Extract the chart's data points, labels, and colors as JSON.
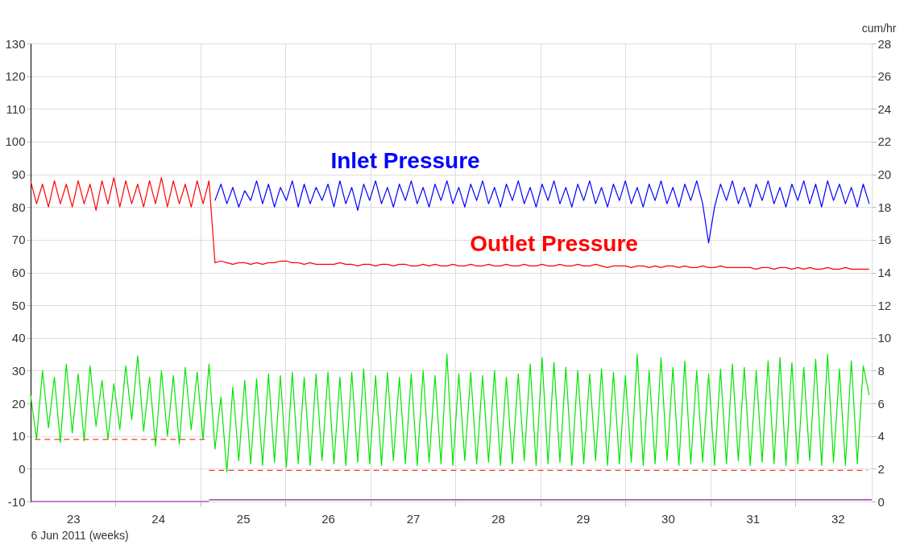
{
  "chart_data": {
    "type": "line",
    "xlabel": "6 Jun 2011 (weeks)",
    "y2label": "cum/hr",
    "grid": true,
    "marker": "none",
    "xlim": [
      22.5,
      32.4
    ],
    "xticks": [
      23,
      24,
      25,
      26,
      27,
      28,
      29,
      30,
      31,
      32,
      {
        "value": 23.5,
        "label": null
      },
      {
        "value": 24.5,
        "label": null
      },
      {
        "value": 25.5,
        "label": null
      },
      {
        "value": 26.5,
        "label": null
      },
      {
        "value": 27.5,
        "label": null
      },
      {
        "value": 28.5,
        "label": null
      },
      {
        "value": 29.5,
        "label": null
      },
      {
        "value": 30.5,
        "label": null
      },
      {
        "value": 31.5,
        "label": null
      }
    ],
    "ylim": [
      -10,
      130
    ],
    "yticks": [
      -10,
      0,
      10,
      20,
      30,
      40,
      50,
      60,
      70,
      80,
      90,
      100,
      110,
      120,
      130
    ],
    "y2lim": [
      0,
      28
    ],
    "y2ticks": [
      0,
      2,
      4,
      6,
      8,
      10,
      12,
      14,
      16,
      18,
      20,
      22,
      24,
      26,
      28
    ],
    "x": [
      22.5,
      22.57,
      22.64,
      22.71,
      22.78,
      22.85,
      22.92,
      22.99,
      23.06,
      23.13,
      23.2,
      23.27,
      23.34,
      23.41,
      23.48,
      23.55,
      23.62,
      23.69,
      23.76,
      23.83,
      23.9,
      23.97,
      24.04,
      24.11,
      24.18,
      24.25,
      24.32,
      24.39,
      24.46,
      24.53,
      24.6,
      24.67,
      24.74,
      24.81,
      24.88,
      24.95,
      25.02,
      25.09,
      25.16,
      25.23,
      25.3,
      25.37,
      25.44,
      25.51,
      25.58,
      25.65,
      25.72,
      25.79,
      25.86,
      25.93,
      26,
      26.07,
      26.14,
      26.21,
      26.28,
      26.35,
      26.42,
      26.49,
      26.56,
      26.63,
      26.7,
      26.77,
      26.84,
      26.91,
      26.98,
      27.05,
      27.12,
      27.19,
      27.26,
      27.33,
      27.4,
      27.47,
      27.54,
      27.61,
      27.68,
      27.75,
      27.82,
      27.89,
      27.96,
      28.03,
      28.1,
      28.17,
      28.24,
      28.31,
      28.38,
      28.45,
      28.52,
      28.59,
      28.66,
      28.73,
      28.8,
      28.87,
      28.94,
      29.01,
      29.08,
      29.15,
      29.22,
      29.29,
      29.36,
      29.43,
      29.5,
      29.57,
      29.64,
      29.71,
      29.78,
      29.85,
      29.92,
      29.99,
      30.06,
      30.13,
      30.2,
      30.27,
      30.34,
      30.41,
      30.48,
      30.55,
      30.62,
      30.69,
      30.76,
      30.83,
      30.9,
      30.97,
      31.04,
      31.11,
      31.18,
      31.25,
      31.32,
      31.39,
      31.46,
      31.53,
      31.6,
      31.67,
      31.74,
      31.81,
      31.88,
      31.95,
      32.02,
      32.09,
      32.16,
      32.23,
      32.3,
      32.37
    ],
    "series": [
      {
        "name": "Inlet Pressure",
        "color": "#0000ff",
        "values": [
          null,
          null,
          null,
          null,
          null,
          null,
          null,
          null,
          null,
          null,
          null,
          null,
          null,
          null,
          null,
          null,
          null,
          null,
          null,
          null,
          null,
          null,
          null,
          null,
          null,
          null,
          null,
          null,
          null,
          null,
          null,
          82,
          87,
          81,
          86,
          80,
          85,
          82,
          88,
          81,
          87,
          80,
          86,
          82,
          88,
          80,
          87,
          81,
          86,
          82,
          87,
          80,
          88,
          81,
          86,
          79,
          87,
          82,
          88,
          81,
          86,
          80,
          87,
          82,
          88,
          81,
          86,
          80,
          87,
          82,
          88,
          81,
          86,
          80,
          87,
          82,
          88,
          81,
          86,
          80,
          87,
          82,
          88,
          81,
          86,
          80,
          87,
          82,
          88,
          81,
          86,
          80,
          87,
          82,
          88,
          81,
          86,
          80,
          87,
          82,
          88,
          81,
          86,
          80,
          87,
          82,
          88,
          81,
          86,
          80,
          87,
          82,
          88,
          81,
          69,
          80,
          87,
          82,
          88,
          81,
          86,
          80,
          87,
          82,
          88,
          81,
          86,
          80,
          87,
          82,
          88,
          81,
          87,
          80,
          88,
          82,
          87,
          81,
          86,
          80,
          87,
          81
        ]
      },
      {
        "name": "Outlet Pressure",
        "color": "#ff0000",
        "values": [
          88,
          81,
          87,
          80,
          88,
          81,
          87,
          80,
          88,
          81,
          87,
          79,
          88,
          81,
          89,
          80,
          88,
          81,
          87,
          80,
          88,
          81,
          89,
          80,
          88,
          81,
          87,
          80,
          88,
          81,
          88,
          63,
          63.5,
          63,
          62.5,
          63,
          63,
          62.5,
          63,
          62.5,
          63,
          63,
          63.5,
          63.5,
          63,
          63,
          62.5,
          63,
          62.5,
          62.5,
          62.5,
          62.5,
          63,
          62.5,
          62.5,
          62,
          62.5,
          62.5,
          62,
          62.5,
          62.5,
          62,
          62.5,
          62.5,
          62,
          62,
          62.5,
          62,
          62.5,
          62,
          62,
          62.5,
          62,
          62,
          62.5,
          62,
          62,
          62.5,
          62,
          62,
          62.5,
          62,
          62,
          62.5,
          62,
          62,
          62.5,
          62,
          62,
          62.5,
          62,
          62,
          62.5,
          62,
          62,
          62.5,
          62,
          61.5,
          62,
          62,
          62,
          61.5,
          62,
          62,
          61.5,
          62,
          61.5,
          62,
          62,
          61.5,
          62,
          61.5,
          61.5,
          62,
          61.5,
          61.5,
          62,
          61.5,
          61.5,
          61.5,
          61.5,
          61.5,
          61,
          61.5,
          61.5,
          61,
          61.5,
          61.5,
          61,
          61.5,
          61,
          61.5,
          61,
          61,
          61.5,
          61,
          61,
          61.5,
          61,
          61,
          61,
          61
        ]
      },
      {
        "color": "#00e600",
        "axis": "y2",
        "values": [
          6.5,
          3.8,
          8.0,
          4.5,
          7.6,
          3.6,
          8.4,
          4.2,
          7.8,
          3.7,
          8.3,
          4.6,
          7.4,
          3.8,
          7.2,
          4.4,
          8.3,
          5.0,
          8.9,
          4.3,
          7.6,
          3.4,
          8.0,
          4.0,
          7.7,
          3.5,
          8.2,
          4.4,
          7.9,
          3.8,
          8.4,
          3.2,
          6.4,
          1.8,
          7.0,
          2.5,
          7.4,
          2.3,
          7.5,
          2.2,
          7.8,
          2.4,
          7.7,
          2.1,
          7.9,
          2.3,
          7.6,
          2.2,
          7.8,
          2.5,
          7.9,
          2.3,
          7.6,
          2.2,
          7.9,
          2.4,
          8.1,
          2.3,
          7.7,
          2.2,
          7.9,
          2.5,
          7.6,
          2.3,
          7.8,
          2.2,
          8.0,
          2.4,
          7.7,
          2.3,
          9.0,
          2.2,
          7.8,
          2.5,
          7.9,
          2.3,
          7.7,
          2.4,
          8.0,
          2.2,
          7.6,
          2.3,
          7.8,
          2.5,
          8.4,
          2.2,
          8.8,
          2.3,
          8.5,
          2.4,
          8.2,
          2.2,
          8.0,
          2.3,
          7.8,
          2.5,
          8.1,
          2.2,
          7.9,
          2.3,
          7.7,
          2.4,
          9.0,
          2.2,
          8.0,
          2.3,
          8.8,
          2.5,
          8.2,
          2.2,
          8.6,
          2.3,
          8.0,
          2.4,
          7.8,
          2.2,
          8.1,
          2.3,
          8.4,
          2.5,
          8.2,
          2.2,
          8.0,
          2.4,
          8.6,
          2.3,
          8.8,
          2.2,
          8.5,
          2.3,
          8.2,
          2.5,
          8.7,
          2.2,
          9.0,
          2.4,
          8.1,
          2.2,
          8.6,
          2.3,
          8.3,
          6.5
        ]
      },
      {
        "color": "#f04020",
        "axis": "y2",
        "line_style": "dashed",
        "x": [
          22.55,
          24.55
        ],
        "values": [
          3.8,
          3.8
        ]
      },
      {
        "color": "#f04020",
        "axis": "y2",
        "line_style": "dashed",
        "x": [
          24.6,
          32.35
        ],
        "values": [
          1.9,
          1.9
        ]
      },
      {
        "color": "#8b1a9b",
        "axis": "y2",
        "x": [
          22.5,
          24.6
        ],
        "values": [
          0,
          0
        ]
      },
      {
        "color": "#8b1a9b",
        "axis": "y2",
        "x": [
          24.6,
          32.4
        ],
        "values": [
          0.1,
          0.1
        ]
      }
    ]
  }
}
